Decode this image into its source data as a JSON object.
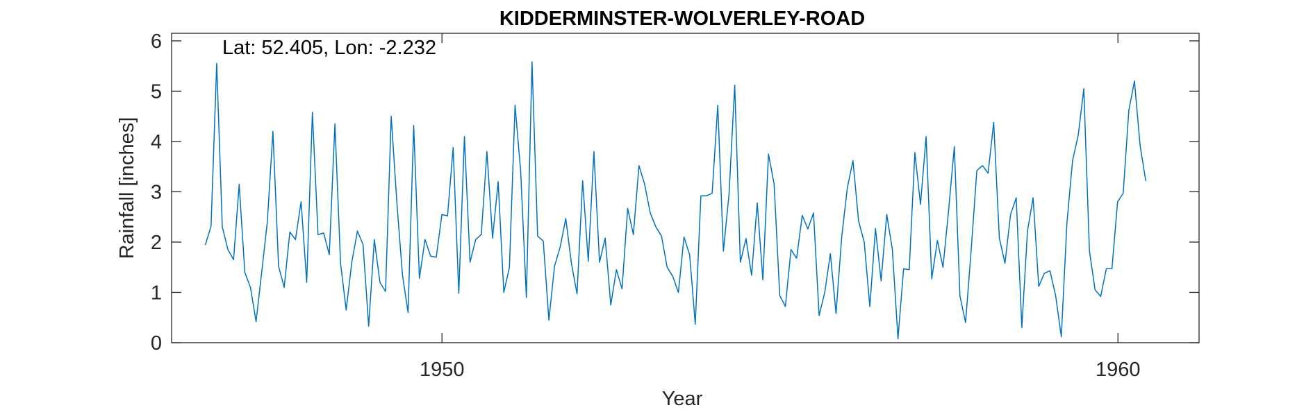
{
  "chart_data": {
    "type": "line",
    "title": "KIDDERMINSTER-WOLVERLEY-ROAD",
    "annotation": "Lat: 52.405, Lon: -2.232",
    "xlabel": "Year",
    "ylabel": "Rainfall [inches]",
    "xlim": [
      1946.0,
      1961.2
    ],
    "ylim": [
      0,
      6.15
    ],
    "xticks": [
      1950,
      1960
    ],
    "yticks": [
      0,
      1,
      2,
      3,
      4,
      5,
      6
    ],
    "grid": false,
    "box": true,
    "line_color": "#0072BD",
    "series": [
      {
        "x_start": 1946.5,
        "x_step": 0.0833,
        "values": [
          1.95,
          2.32,
          5.55,
          2.3,
          1.85,
          1.65,
          3.15,
          1.4,
          1.1,
          0.42,
          1.4,
          2.4,
          4.2,
          1.52,
          1.1,
          2.2,
          2.05,
          2.8,
          1.2,
          4.58,
          2.15,
          2.18,
          1.75,
          4.35,
          1.58,
          0.65,
          1.6,
          2.22,
          1.95,
          0.33,
          2.05,
          1.2,
          1.02,
          4.5,
          2.8,
          1.35,
          0.6,
          4.32,
          1.28,
          2.05,
          1.72,
          1.7,
          2.55,
          2.52,
          3.88,
          0.98,
          4.1,
          1.6,
          2.05,
          2.15,
          3.8,
          2.08,
          3.2,
          1.0,
          1.5,
          4.72,
          3.4,
          0.9,
          5.58,
          2.12,
          2.02,
          0.45,
          1.52,
          1.9,
          2.47,
          1.58,
          0.97,
          3.22,
          1.62,
          3.8,
          1.6,
          2.08,
          0.75,
          1.45,
          1.07,
          2.67,
          2.15,
          3.52,
          3.15,
          2.58,
          2.3,
          2.12,
          1.5,
          1.32,
          1.0,
          2.1,
          1.75,
          0.37,
          2.92,
          2.92,
          2.97,
          4.72,
          1.82,
          2.95,
          5.12,
          1.6,
          2.07,
          1.34,
          2.78,
          1.25,
          3.75,
          3.15,
          0.94,
          0.72,
          1.85,
          1.68,
          2.53,
          2.26,
          2.58,
          0.54,
          1.0,
          1.77,
          0.58,
          2.1,
          3.08,
          3.62,
          2.42,
          2.0,
          0.72,
          2.27,
          1.23,
          2.55,
          1.85,
          0.08,
          1.47,
          1.45,
          3.78,
          2.75,
          4.1,
          1.27,
          2.03,
          1.5,
          2.65,
          3.9,
          0.93,
          0.4,
          1.85,
          3.42,
          3.52,
          3.37,
          4.38,
          2.08,
          1.58,
          2.55,
          2.88,
          0.3,
          2.22,
          2.88,
          1.12,
          1.38,
          1.43,
          0.93,
          0.12,
          2.38,
          3.62,
          4.12,
          5.05,
          1.82,
          1.05,
          0.92,
          1.47,
          1.47,
          2.8,
          2.97,
          4.62,
          5.2,
          3.92,
          3.22
        ]
      }
    ]
  }
}
